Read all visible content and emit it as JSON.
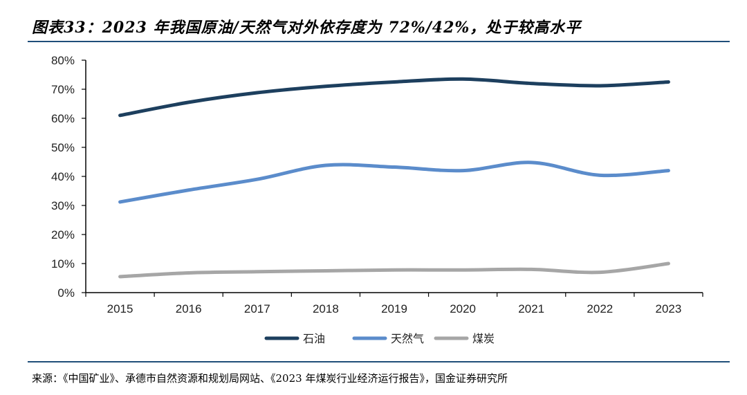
{
  "title": "图表33：2023 年我国原油/天然气对外依存度为 72%/42%，处于较高水平",
  "source": "来源：《中国矿业》、承德市自然资源和规划局网站、《2023 年煤炭行业经济运行报告》，国金证券研究所",
  "chart_data": {
    "type": "line",
    "x": [
      "2015",
      "2016",
      "2017",
      "2018",
      "2019",
      "2020",
      "2021",
      "2022",
      "2023"
    ],
    "y_ticks": [
      "0%",
      "10%",
      "20%",
      "30%",
      "40%",
      "50%",
      "60%",
      "70%",
      "80%"
    ],
    "ylim": [
      0,
      80
    ],
    "grid": false,
    "legend_position": "bottom",
    "series": [
      {
        "name": "石油",
        "color": "#1d3f5e",
        "values": [
          61,
          65.5,
          68.8,
          71,
          72.5,
          73.5,
          72,
          71.2,
          72.5
        ]
      },
      {
        "name": "天然气",
        "color": "#5b8ccb",
        "values": [
          31.2,
          35.3,
          39,
          43.8,
          43.2,
          42,
          44.8,
          40.4,
          42
        ]
      },
      {
        "name": "煤炭",
        "color": "#a6a6a6",
        "values": [
          5.5,
          6.8,
          7.2,
          7.5,
          7.8,
          7.8,
          8,
          7,
          10
        ]
      }
    ]
  }
}
